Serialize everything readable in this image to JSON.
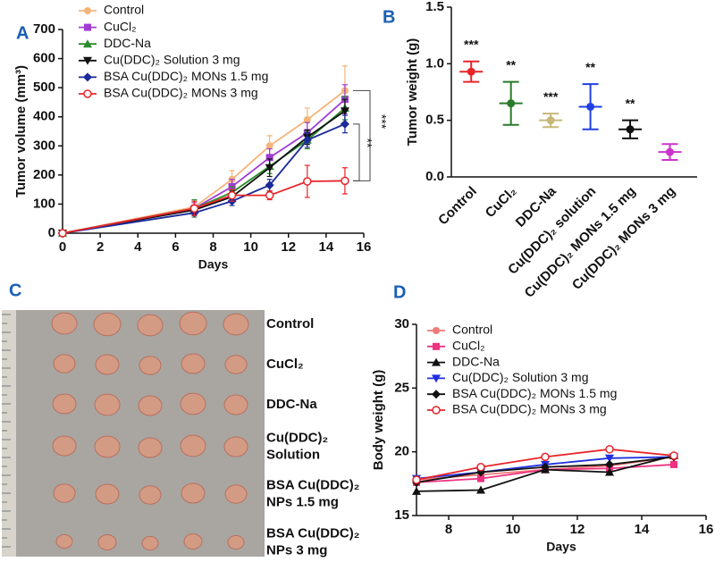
{
  "panel_labels": [
    "A",
    "B",
    "C",
    "D"
  ],
  "chart_data": [
    {
      "type": "line",
      "x_label": "Days",
      "y_label": "Tumor volume (mm³)",
      "x": [
        0,
        7,
        9,
        11,
        13,
        15
      ],
      "xlim": [
        0,
        16
      ],
      "xticks": [
        0,
        2,
        4,
        6,
        8,
        10,
        12,
        14,
        16
      ],
      "ylim": [
        0,
        700
      ],
      "yticks": [
        0,
        100,
        200,
        300,
        400,
        500,
        600,
        700
      ],
      "legend": "top-left",
      "series": [
        {
          "name": "Control",
          "color": "#f5b47a",
          "marker": "circle",
          "values": [
            0,
            90,
            185,
            300,
            390,
            490
          ],
          "errors": [
            0,
            20,
            30,
            35,
            40,
            85
          ]
        },
        {
          "name": "CuCl₂",
          "color": "#a03cd2",
          "marker": "square",
          "values": [
            0,
            85,
            160,
            260,
            345,
            460
          ],
          "errors": [
            0,
            20,
            25,
            30,
            35,
            50
          ]
        },
        {
          "name": "DDC-Na",
          "color": "#2a8a2a",
          "marker": "triangle",
          "values": [
            0,
            85,
            140,
            230,
            320,
            430
          ],
          "errors": [
            0,
            30,
            20,
            25,
            30,
            40
          ]
        },
        {
          "name": "Cu(DDC)₂ Solution 3 mg",
          "color": "#111111",
          "marker": "inverted-triangle",
          "values": [
            0,
            80,
            125,
            225,
            330,
            420
          ],
          "errors": [
            0,
            15,
            20,
            30,
            25,
            40
          ]
        },
        {
          "name": "BSA Cu(DDC)₂ MONs 1.5 mg",
          "color": "#1a2a9a",
          "marker": "diamond",
          "values": [
            0,
            70,
            110,
            165,
            320,
            375
          ],
          "errors": [
            0,
            10,
            15,
            20,
            25,
            30
          ]
        },
        {
          "name": "BSA Cu(DDC)₂ MONs 3 mg",
          "color": "#e8242a",
          "marker": "open-circle",
          "values": [
            0,
            85,
            130,
            130,
            178,
            180
          ],
          "errors": [
            0,
            25,
            20,
            15,
            55,
            45
          ]
        }
      ],
      "annotations": [
        "***",
        "**"
      ]
    },
    {
      "type": "dot",
      "y_label": "Tumor weight (g)",
      "categories": [
        "Control",
        "CuCl₂",
        "DDC-Na",
        "Cu(DDC)₂ solution",
        "Cu(DDC)₂ MONs 1.5 mg",
        "Cu(DDC)₂ MONs 3 mg"
      ],
      "values": [
        0.93,
        0.65,
        0.5,
        0.62,
        0.42,
        0.22
      ],
      "errors": [
        0.09,
        0.19,
        0.06,
        0.2,
        0.08,
        0.07
      ],
      "colors": [
        "#e8242a",
        "#2a7a2a",
        "#c8b878",
        "#2040e0",
        "#111111",
        "#cc33cc"
      ],
      "value_labels": [
        "***",
        "**",
        "***",
        "**",
        "**",
        null
      ],
      "ylim": [
        0,
        1.5
      ],
      "yticks": [
        {
          "value": 0,
          "label": "0.0"
        },
        {
          "value": 0.5,
          "label": "0.5"
        },
        {
          "value": 1,
          "label": "1.0"
        },
        {
          "value": 1.5,
          "label": "1.5"
        }
      ]
    },
    {
      "type": "line",
      "x_label": "Days",
      "y_label": "Body weight (g)",
      "x": [
        7,
        9,
        11,
        13,
        15
      ],
      "xlim": [
        7,
        16
      ],
      "xticks": [
        8,
        10,
        12,
        14,
        16
      ],
      "ylim": [
        15,
        30
      ],
      "yticks": [
        15,
        20,
        25,
        30
      ],
      "legend": "top-left",
      "series": [
        {
          "name": "Control",
          "color": "#f07878",
          "marker": "circle",
          "values": [
            17.8,
            18.2,
            18.6,
            18.9,
            19.6
          ]
        },
        {
          "name": "CuCl₂",
          "color": "#f03080",
          "marker": "square",
          "values": [
            17.6,
            17.9,
            18.6,
            18.7,
            19.0
          ]
        },
        {
          "name": "DDC-Na",
          "color": "#111111",
          "marker": "triangle",
          "values": [
            16.9,
            17.0,
            18.6,
            18.4,
            19.7
          ]
        },
        {
          "name": "Cu(DDC)₂ Solution 3 mg",
          "color": "#2030e0",
          "marker": "inverted-triangle",
          "values": [
            17.9,
            18.4,
            19.0,
            19.5,
            19.6
          ]
        },
        {
          "name": "BSA Cu(DDC)₂ MONs 1.5 mg",
          "color": "#111111",
          "marker": "diamond",
          "values": [
            17.6,
            18.4,
            18.8,
            19.0,
            19.6
          ]
        },
        {
          "name": "BSA Cu(DDC)₂ MONs 3 mg",
          "color": "#e8242a",
          "marker": "open-circle",
          "values": [
            17.8,
            18.8,
            19.6,
            20.2,
            19.7
          ]
        }
      ]
    }
  ],
  "photo_panel": {
    "rows": [
      [
        "Control"
      ],
      [
        "CuCl₂"
      ],
      [
        "DDC-Na"
      ],
      [
        "Cu(DDC)₂",
        "Solution"
      ],
      [
        "BSA Cu(DDC)₂",
        "NPs 1.5 mg"
      ],
      [
        "BSA Cu(DDC)₂",
        "NPs 3 mg"
      ]
    ]
  }
}
